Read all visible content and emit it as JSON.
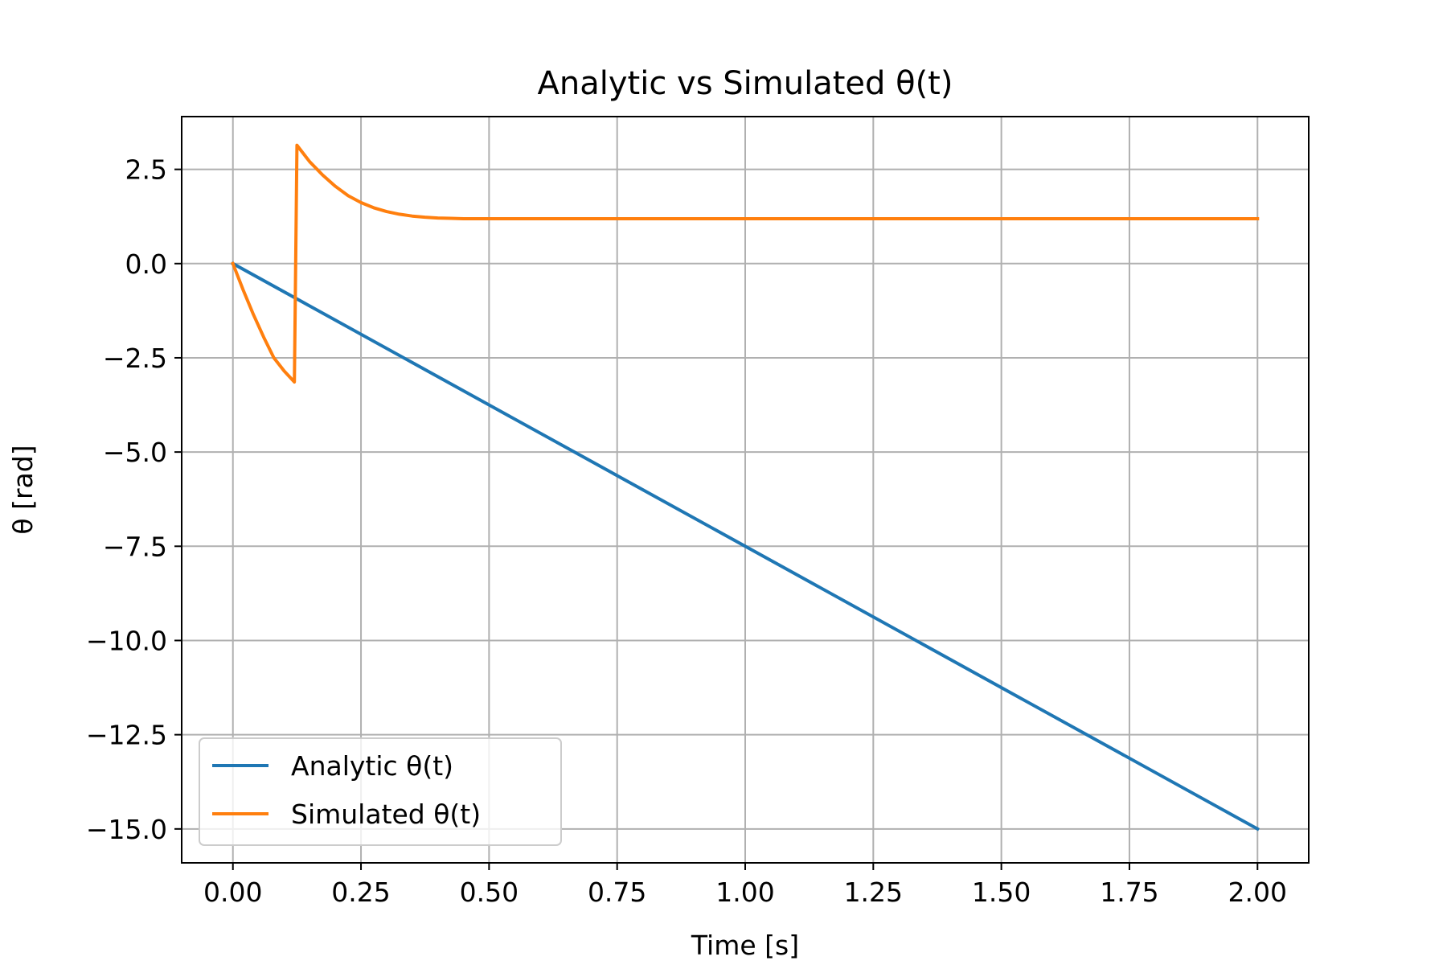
{
  "chart_data": {
    "type": "line",
    "title": "Analytic vs Simulated θ(t)",
    "xlabel": "Time [s]",
    "ylabel": "θ [rad]",
    "xlim": [
      -0.1,
      2.1
    ],
    "ylim": [
      -15.9,
      3.9
    ],
    "xticks": [
      0.0,
      0.25,
      0.5,
      0.75,
      1.0,
      1.25,
      1.5,
      1.75,
      2.0
    ],
    "xtick_labels": [
      "0.00",
      "0.25",
      "0.50",
      "0.75",
      "1.00",
      "1.25",
      "1.50",
      "1.75",
      "2.00"
    ],
    "yticks": [
      2.5,
      0.0,
      -2.5,
      -5.0,
      -7.5,
      -10.0,
      -12.5,
      -15.0
    ],
    "ytick_labels": [
      "2.5",
      "0.0",
      "−2.5",
      "−5.0",
      "−7.5",
      "−10.0",
      "−12.5",
      "−15.0"
    ],
    "grid": true,
    "legend_position": "bottom-left",
    "series": [
      {
        "name": "Analytic θ(t)",
        "color": "#1f77b4",
        "x": [
          0.0,
          2.0
        ],
        "y": [
          0.0,
          -15.0
        ]
      },
      {
        "name": "Simulated θ(t)",
        "color": "#ff7f0e",
        "x": [
          0.0,
          0.02,
          0.04,
          0.06,
          0.08,
          0.1,
          0.12,
          0.125,
          0.15,
          0.175,
          0.2,
          0.225,
          0.25,
          0.275,
          0.3,
          0.325,
          0.35,
          0.375,
          0.4,
          0.425,
          0.45,
          0.5,
          0.75,
          1.0,
          1.25,
          1.5,
          1.75,
          2.0
        ],
        "y": [
          0.0,
          -0.7,
          -1.35,
          -1.95,
          -2.5,
          -2.85,
          -3.14,
          3.14,
          2.7,
          2.35,
          2.05,
          1.8,
          1.62,
          1.48,
          1.38,
          1.31,
          1.26,
          1.23,
          1.21,
          1.2,
          1.19,
          1.19,
          1.19,
          1.19,
          1.19,
          1.19,
          1.19,
          1.19
        ]
      }
    ]
  }
}
